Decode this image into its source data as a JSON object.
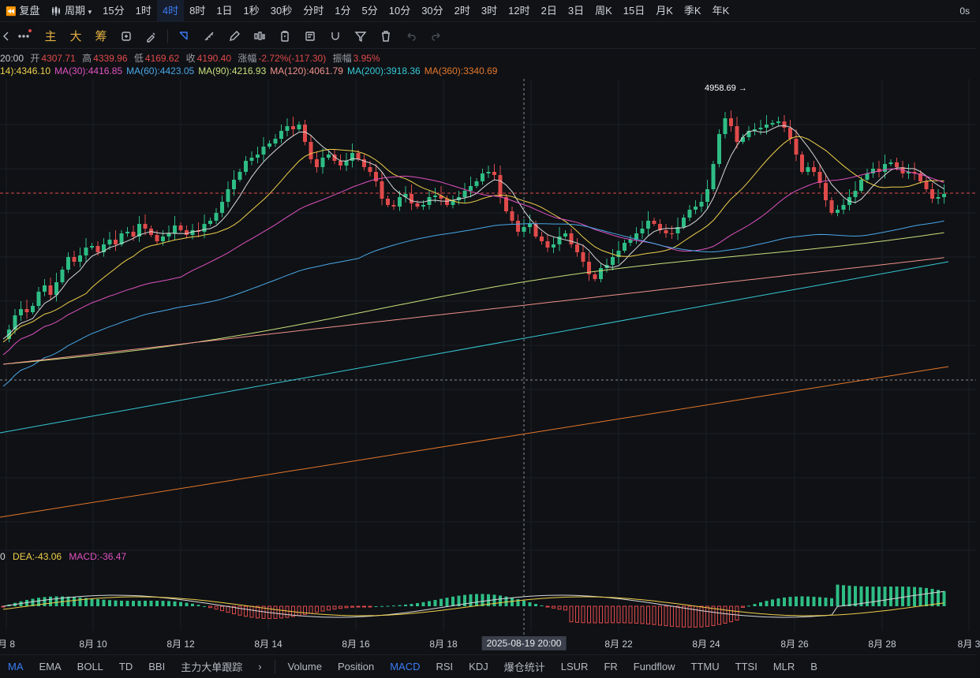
{
  "topbar": {
    "restore_label": "复盘",
    "period_label": "周期",
    "intervals": [
      "15分",
      "1时",
      "4时",
      "8时",
      "1日",
      "1秒",
      "30秒",
      "分时",
      "1分",
      "5分",
      "10分",
      "30分",
      "2时",
      "3时",
      "12时",
      "2日",
      "3日",
      "周K",
      "15日",
      "月K",
      "季K",
      "年K"
    ],
    "active_interval": "4时",
    "latency": "0s"
  },
  "drawbar": {
    "main_label": "主",
    "big_label": "大",
    "chips_label": "筹"
  },
  "info": {
    "time": "20:00",
    "open_label": "开",
    "open": "4307.71",
    "high_label": "高",
    "high": "4339.96",
    "low_label": "低",
    "low": "4169.62",
    "close_label": "收",
    "close": "4190.40",
    "change_label": "涨幅",
    "change": "-2.72%(-117.30)",
    "amp_label": "振幅",
    "amp": "3.95%"
  },
  "ma": [
    {
      "label": "14):4346.10",
      "color": "#f0d04a"
    },
    {
      "label": "MA(30):4416.85",
      "color": "#e052c0"
    },
    {
      "label": "MA(60):4423.05",
      "color": "#4aa8e8"
    },
    {
      "label": "MA(90):4216.93",
      "color": "#c9e07a"
    },
    {
      "label": "MA(120):4061.79",
      "color": "#f0908a"
    },
    {
      "label": "MA(200):3918.36",
      "color": "#36c9d6"
    },
    {
      "label": "MA(360):3340.69",
      "color": "#e6782a"
    }
  ],
  "chart": {
    "high_marker": "4958.69 →"
  },
  "macd": {
    "dif_label": "0",
    "dea_label": "DEA:-43.06",
    "macd_label": "MACD:-36.47",
    "colors": {
      "up": "#2ebd85",
      "down": "#e04a4a",
      "dif": "#d9d9d9",
      "dea": "#f0d04a"
    }
  },
  "xaxis": {
    "ticks": [
      "月 8",
      "8月 10",
      "8月 12",
      "8月 14",
      "8月 16",
      "8月 18",
      "8月 22",
      "8月 24",
      "8月 26",
      "8月 28",
      "8月 3"
    ],
    "crosshair_label": "2025-08-19 20:00"
  },
  "bottombar": {
    "main_indicators": [
      "MA",
      "EMA",
      "BOLL",
      "TD",
      "BBI",
      "主力大单跟踪"
    ],
    "sub_indicators": [
      "Volume",
      "Position",
      "MACD",
      "RSI",
      "KDJ",
      "爆仓统计",
      "LSUR",
      "FR",
      "Fundflow",
      "TTMU",
      "TTSI",
      "MLR",
      "B"
    ],
    "active_main": "MA",
    "active_sub": "MACD"
  },
  "colors": {
    "up": "#2ebd85",
    "down": "#e04a4a",
    "accent": "#3b7cf6",
    "ma5": "#d9d9d9"
  }
}
